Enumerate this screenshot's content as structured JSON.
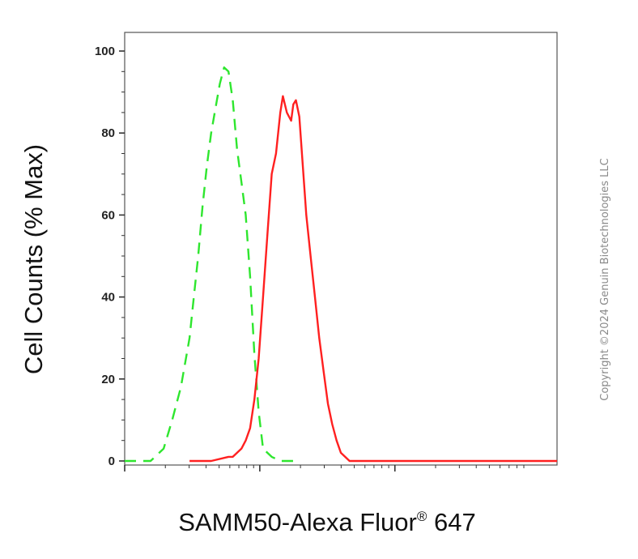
{
  "chart_data": {
    "type": "line",
    "xlabel": "SAMM50-Alexa Fluor",
    "xlabel_superscript": "®",
    "xlabel_suffix": " 647",
    "ylabel": "Cell Counts (% Max)",
    "ylim": [
      0,
      100
    ],
    "yticks": [
      "0",
      "20",
      "40",
      "60",
      "80",
      "100"
    ],
    "x_scale": "log",
    "xlim": [
      0,
      100
    ],
    "grid": false,
    "watermark": "Copyright ©2024 Genuin Biotechnologies LLC",
    "series": [
      {
        "style": "dashed",
        "color": "#2ee62e",
        "x": [
          0,
          4,
          6,
          7,
          9,
          11,
          13,
          15,
          16,
          17,
          18,
          19,
          20,
          21,
          22,
          23,
          24,
          25,
          26,
          27,
          28,
          29,
          30,
          31,
          32,
          34,
          36,
          40
        ],
        "y": [
          0,
          0,
          0,
          1,
          3,
          10,
          18,
          30,
          40,
          50,
          62,
          72,
          80,
          86,
          92,
          96,
          95,
          88,
          76,
          68,
          60,
          45,
          26,
          12,
          3,
          1,
          0,
          0
        ]
      },
      {
        "style": "solid",
        "color": "#ff2020",
        "x": [
          15,
          20,
          24,
          25,
          26,
          27,
          28,
          29,
          30,
          31,
          32,
          33,
          34,
          35,
          36,
          36.6,
          37.5,
          38.5,
          39,
          39.6,
          40.4,
          41.2,
          42,
          43,
          44,
          45,
          46,
          47,
          48,
          49,
          50,
          51,
          52,
          55,
          60,
          70,
          100
        ],
        "y": [
          0,
          0,
          1,
          1,
          2,
          3,
          5,
          8,
          15,
          25,
          40,
          55,
          70,
          75,
          85,
          89,
          85,
          83,
          87,
          88,
          84,
          72,
          60,
          50,
          40,
          30,
          22,
          14,
          9,
          5,
          2,
          1,
          0,
          0,
          0,
          0,
          0
        ]
      }
    ]
  }
}
